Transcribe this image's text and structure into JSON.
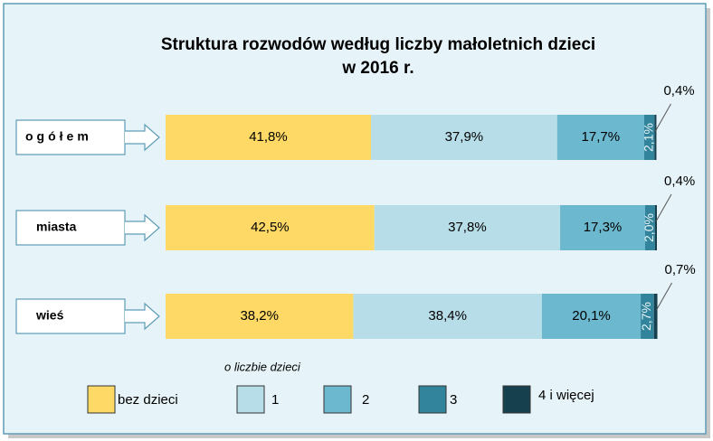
{
  "chart_data": {
    "type": "stacked-bar-horizontal",
    "title": [
      "Struktura rozwodów według liczby małoletnich dzieci",
      "w 2016 r."
    ],
    "categories": [
      "ogółem",
      "miasta",
      "wieś"
    ],
    "xlim": [
      0,
      100
    ],
    "legend_title": "o liczbie dzieci",
    "series": [
      {
        "name": "bez dzieci",
        "color": "#ffd966",
        "values": [
          41.8,
          42.5,
          38.2
        ],
        "value_labels": [
          "41,8%",
          "42,5%",
          "38,2%"
        ]
      },
      {
        "name": "1",
        "color": "#b7dde8",
        "values": [
          37.9,
          37.8,
          38.4
        ],
        "value_labels": [
          "37,9%",
          "37,8%",
          "38,4%"
        ]
      },
      {
        "name": "2",
        "color": "#6cb8ce",
        "values": [
          17.7,
          17.3,
          20.1
        ],
        "value_labels": [
          "17,7%",
          "17,3%",
          "20,1%"
        ]
      },
      {
        "name": "3",
        "color": "#31849b",
        "values": [
          2.1,
          2.0,
          2.7
        ],
        "value_labels": [
          "2,1%",
          "2,0%",
          "2,7%"
        ]
      },
      {
        "name": "4 i więcej",
        "color": "#17404f",
        "values": [
          0.4,
          0.4,
          0.7
        ],
        "value_labels": [
          "0,4%",
          "0,4%",
          "0,7%"
        ]
      }
    ]
  }
}
